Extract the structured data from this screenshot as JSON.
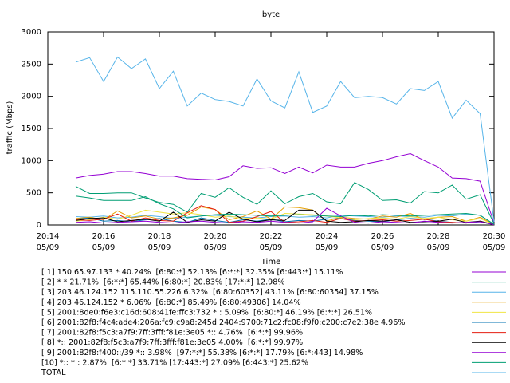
{
  "chart_data": {
    "type": "line",
    "title": "byte",
    "ylabel": "traffic (Mbps)",
    "xlabel": "Time",
    "x": [
      15,
      15.5,
      16,
      16.5,
      17,
      17.5,
      18,
      18.5,
      19,
      19.5,
      20,
      20.5,
      21,
      21.5,
      22,
      22.5,
      23,
      23.5,
      24,
      24.5,
      25,
      25.5,
      26,
      26.5,
      27,
      27.5,
      28,
      28.5,
      29,
      29.5,
      30
    ],
    "xlim": [
      14,
      30
    ],
    "xticks": [
      {
        "value": 14,
        "label": "20:14",
        "date": "05/09"
      },
      {
        "value": 16,
        "label": "20:16",
        "date": "05/09"
      },
      {
        "value": 18,
        "label": "20:18",
        "date": "05/09"
      },
      {
        "value": 20,
        "label": "20:20",
        "date": "05/09"
      },
      {
        "value": 22,
        "label": "20:22",
        "date": "05/09"
      },
      {
        "value": 24,
        "label": "20:24",
        "date": "05/09"
      },
      {
        "value": 26,
        "label": "20:26",
        "date": "05/09"
      },
      {
        "value": 28,
        "label": "20:28",
        "date": "05/09"
      },
      {
        "value": 30,
        "label": "20:30",
        "date": "05/09"
      }
    ],
    "ylim": [
      0,
      3000
    ],
    "yticks": [
      0,
      500,
      1000,
      1500,
      2000,
      2500,
      3000
    ],
    "grid": false,
    "series": [
      {
        "name": "[ 1] 150.65.97.133 * 40.24%  [6:80:*] 52.13% [6:*:*] 32.35% [6:443:*] 15.11%",
        "color": "#9400d3",
        "values": [
          730,
          770,
          790,
          830,
          830,
          800,
          760,
          760,
          720,
          710,
          700,
          750,
          920,
          880,
          890,
          800,
          900,
          810,
          930,
          900,
          900,
          960,
          1000,
          1060,
          1110,
          1000,
          900,
          730,
          720,
          680,
          30
        ]
      },
      {
        "name": "[ 2] * * 21.71%  [6:*:*] 65.44% [6:80:*] 20.83% [17:*:*] 12.98%",
        "color": "#009e73",
        "values": [
          600,
          490,
          490,
          500,
          500,
          420,
          350,
          320,
          200,
          490,
          430,
          580,
          430,
          320,
          530,
          330,
          440,
          490,
          360,
          330,
          660,
          550,
          380,
          390,
          340,
          520,
          500,
          620,
          400,
          470,
          20
        ]
      },
      {
        "name": "[ 3] 203.46.124.152 115.110.55.226 6.32%  [6:80:60352] 43.11% [6:80:60354] 37.15%",
        "color": "#56b4e9",
        "values": [
          130,
          120,
          140,
          110,
          120,
          150,
          130,
          100,
          120,
          140,
          150,
          130,
          120,
          110,
          130,
          140,
          120,
          130,
          110,
          150,
          140,
          130,
          120,
          140,
          130,
          120,
          150,
          140,
          170,
          150,
          10
        ]
      },
      {
        "name": "[ 4] 203.46.124.152 * 6.06%  [6:80:*] 85.49% [6:80:49306] 14.04%",
        "color": "#e69f00",
        "values": [
          100,
          120,
          80,
          220,
          110,
          140,
          90,
          110,
          150,
          280,
          240,
          80,
          130,
          220,
          90,
          280,
          270,
          230,
          60,
          120,
          100,
          90,
          140,
          120,
          180,
          80,
          120,
          130,
          60,
          120,
          5
        ]
      },
      {
        "name": "[ 5] 2001:8de0:f6e3:c16d:608:41fe:ffc3:732 *:: 5.09%  [6:80:*] 46.19% [6:*:*] 26.51%",
        "color": "#f0e442",
        "values": [
          60,
          80,
          120,
          90,
          150,
          230,
          200,
          170,
          190,
          160,
          120,
          140,
          100,
          110,
          90,
          180,
          170,
          160,
          140,
          110,
          80,
          100,
          110,
          90,
          130,
          100,
          120,
          80,
          60,
          100,
          5
        ]
      },
      {
        "name": "[ 6] 2001:82f8:f4c4:ade4:206a:fc9:c9a8:245d 2404:9700:71c2:fc08:f9f0:c200:c7e2:38e 4.96%",
        "color": "#0072b2",
        "values": [
          90,
          110,
          60,
          70,
          50,
          80,
          100,
          60,
          40,
          110,
          70,
          40,
          80,
          60,
          90,
          50,
          70,
          60,
          90,
          100,
          70,
          60,
          50,
          80,
          100,
          90,
          60,
          40,
          30,
          50,
          5
        ]
      },
      {
        "name": "[ 7] 2001:82f8:f5c3:a7f9:7ff:3fff:f81e:3e05 *:: 4.76%  [6:*:*] 99.96%",
        "color": "#e51e10",
        "values": [
          80,
          70,
          90,
          170,
          60,
          110,
          70,
          60,
          190,
          300,
          240,
          40,
          60,
          130,
          210,
          40,
          50,
          70,
          40,
          100,
          60,
          70,
          80,
          60,
          70,
          90,
          50,
          40,
          30,
          60,
          5
        ]
      },
      {
        "name": "[ 8] *:: 2001:82f8:f5c3:a7f9:7ff:3fff:f81e:3e05 4.00%  [6:*:*] 99.97%",
        "color": "#000000",
        "values": [
          70,
          100,
          110,
          50,
          70,
          90,
          60,
          200,
          40,
          80,
          60,
          200,
          90,
          50,
          80,
          70,
          230,
          230,
          60,
          40,
          50,
          70,
          60,
          80,
          40,
          50,
          60,
          90,
          40,
          60,
          5
        ]
      },
      {
        "name": "[ 9] 2001:82f8:f400::/39 *:: 3.98%  [97:*:*] 55.38% [6:*:*] 17.79% [6:*:443] 14.98%",
        "color": "#9400d3",
        "values": [
          40,
          50,
          30,
          40,
          50,
          60,
          40,
          30,
          50,
          60,
          40,
          30,
          50,
          40,
          60,
          40,
          30,
          50,
          260,
          140,
          40,
          30,
          50,
          40,
          30,
          60,
          40,
          30,
          40,
          50,
          5
        ]
      },
      {
        "name": "[10] *:: *:: 2.87%  [6:*:*] 33.71% [17:443:*] 27.09% [6:443:*] 25.62%",
        "color": "#009e73",
        "values": [
          450,
          420,
          380,
          380,
          380,
          440,
          330,
          250,
          110,
          140,
          160,
          170,
          160,
          150,
          140,
          150,
          160,
          150,
          140,
          130,
          150,
          140,
          160,
          150,
          140,
          150,
          160,
          170,
          180,
          150,
          10
        ]
      },
      {
        "name": "TOTAL",
        "color": "#56b4e9",
        "values": [
          2530,
          2600,
          2230,
          2610,
          2430,
          2580,
          2120,
          2390,
          1850,
          2050,
          1950,
          1920,
          1850,
          2270,
          1930,
          1820,
          2380,
          1750,
          1850,
          2230,
          1980,
          2000,
          1980,
          1880,
          2120,
          2090,
          2230,
          1660,
          1940,
          1730,
          50
        ]
      }
    ]
  }
}
